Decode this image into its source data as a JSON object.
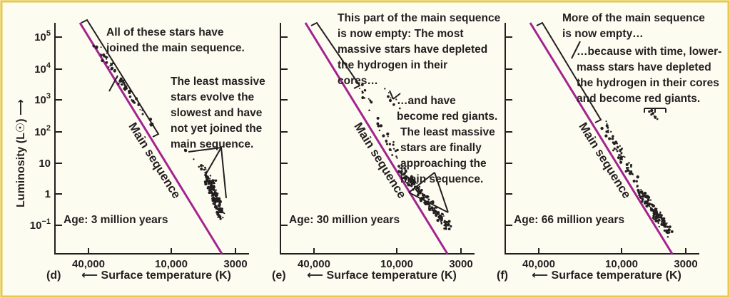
{
  "chart_data": [
    {
      "type": "scatter",
      "panel_label": "(d)",
      "age_label": "Age: 3 million years",
      "ylabel": "Luminosity (L☉) ⟶",
      "xlabel": "⟵ Surface temperature (K)",
      "x_tick_labels": [
        "40,000",
        "10,000",
        "3000"
      ],
      "y_tick_labels": [
        "10^5",
        "10^4",
        "10^3",
        "10^2",
        "10",
        "1",
        "10^−1"
      ],
      "main_sequence_label": "Main sequence",
      "main_sequence_color": "#a3238e",
      "annotations": [
        {
          "lines": [
            "All of these stars have",
            "joined the main sequence."
          ]
        },
        {
          "lines": [
            "The least massive",
            "stars evolve the",
            "slowest and have",
            "not yet joined the",
            "main sequence."
          ]
        }
      ]
    },
    {
      "type": "scatter",
      "panel_label": "(e)",
      "age_label": "Age: 30 million years",
      "xlabel": "⟵ Surface temperature (K)",
      "x_tick_labels": [
        "40,000",
        "10,000",
        "3000"
      ],
      "main_sequence_label": "Main sequence",
      "main_sequence_color": "#a3238e",
      "annotations": [
        {
          "lines": [
            "This part of the main sequence",
            "is now empty: The most",
            "massive stars have depleted",
            "the hydrogen in their",
            "cores…"
          ]
        },
        {
          "lines": [
            "…and have",
            "become red giants."
          ]
        },
        {
          "lines": [
            "The least massive",
            "stars are finally",
            "approaching the",
            "main sequence."
          ]
        }
      ]
    },
    {
      "type": "scatter",
      "panel_label": "(f)",
      "age_label": "Age: 66 million years",
      "xlabel": "⟵ Surface temperature (K)",
      "x_tick_labels": [
        "40,000",
        "10,000",
        "3000"
      ],
      "main_sequence_label": "Main sequence",
      "main_sequence_color": "#a3238e",
      "annotations": [
        {
          "lines": [
            "More of the main sequence",
            "is now empty…"
          ]
        },
        {
          "lines": [
            "…because with time, lower-",
            "mass stars have depleted",
            "the hydrogen in their cores",
            "and become red giants."
          ]
        }
      ]
    }
  ]
}
